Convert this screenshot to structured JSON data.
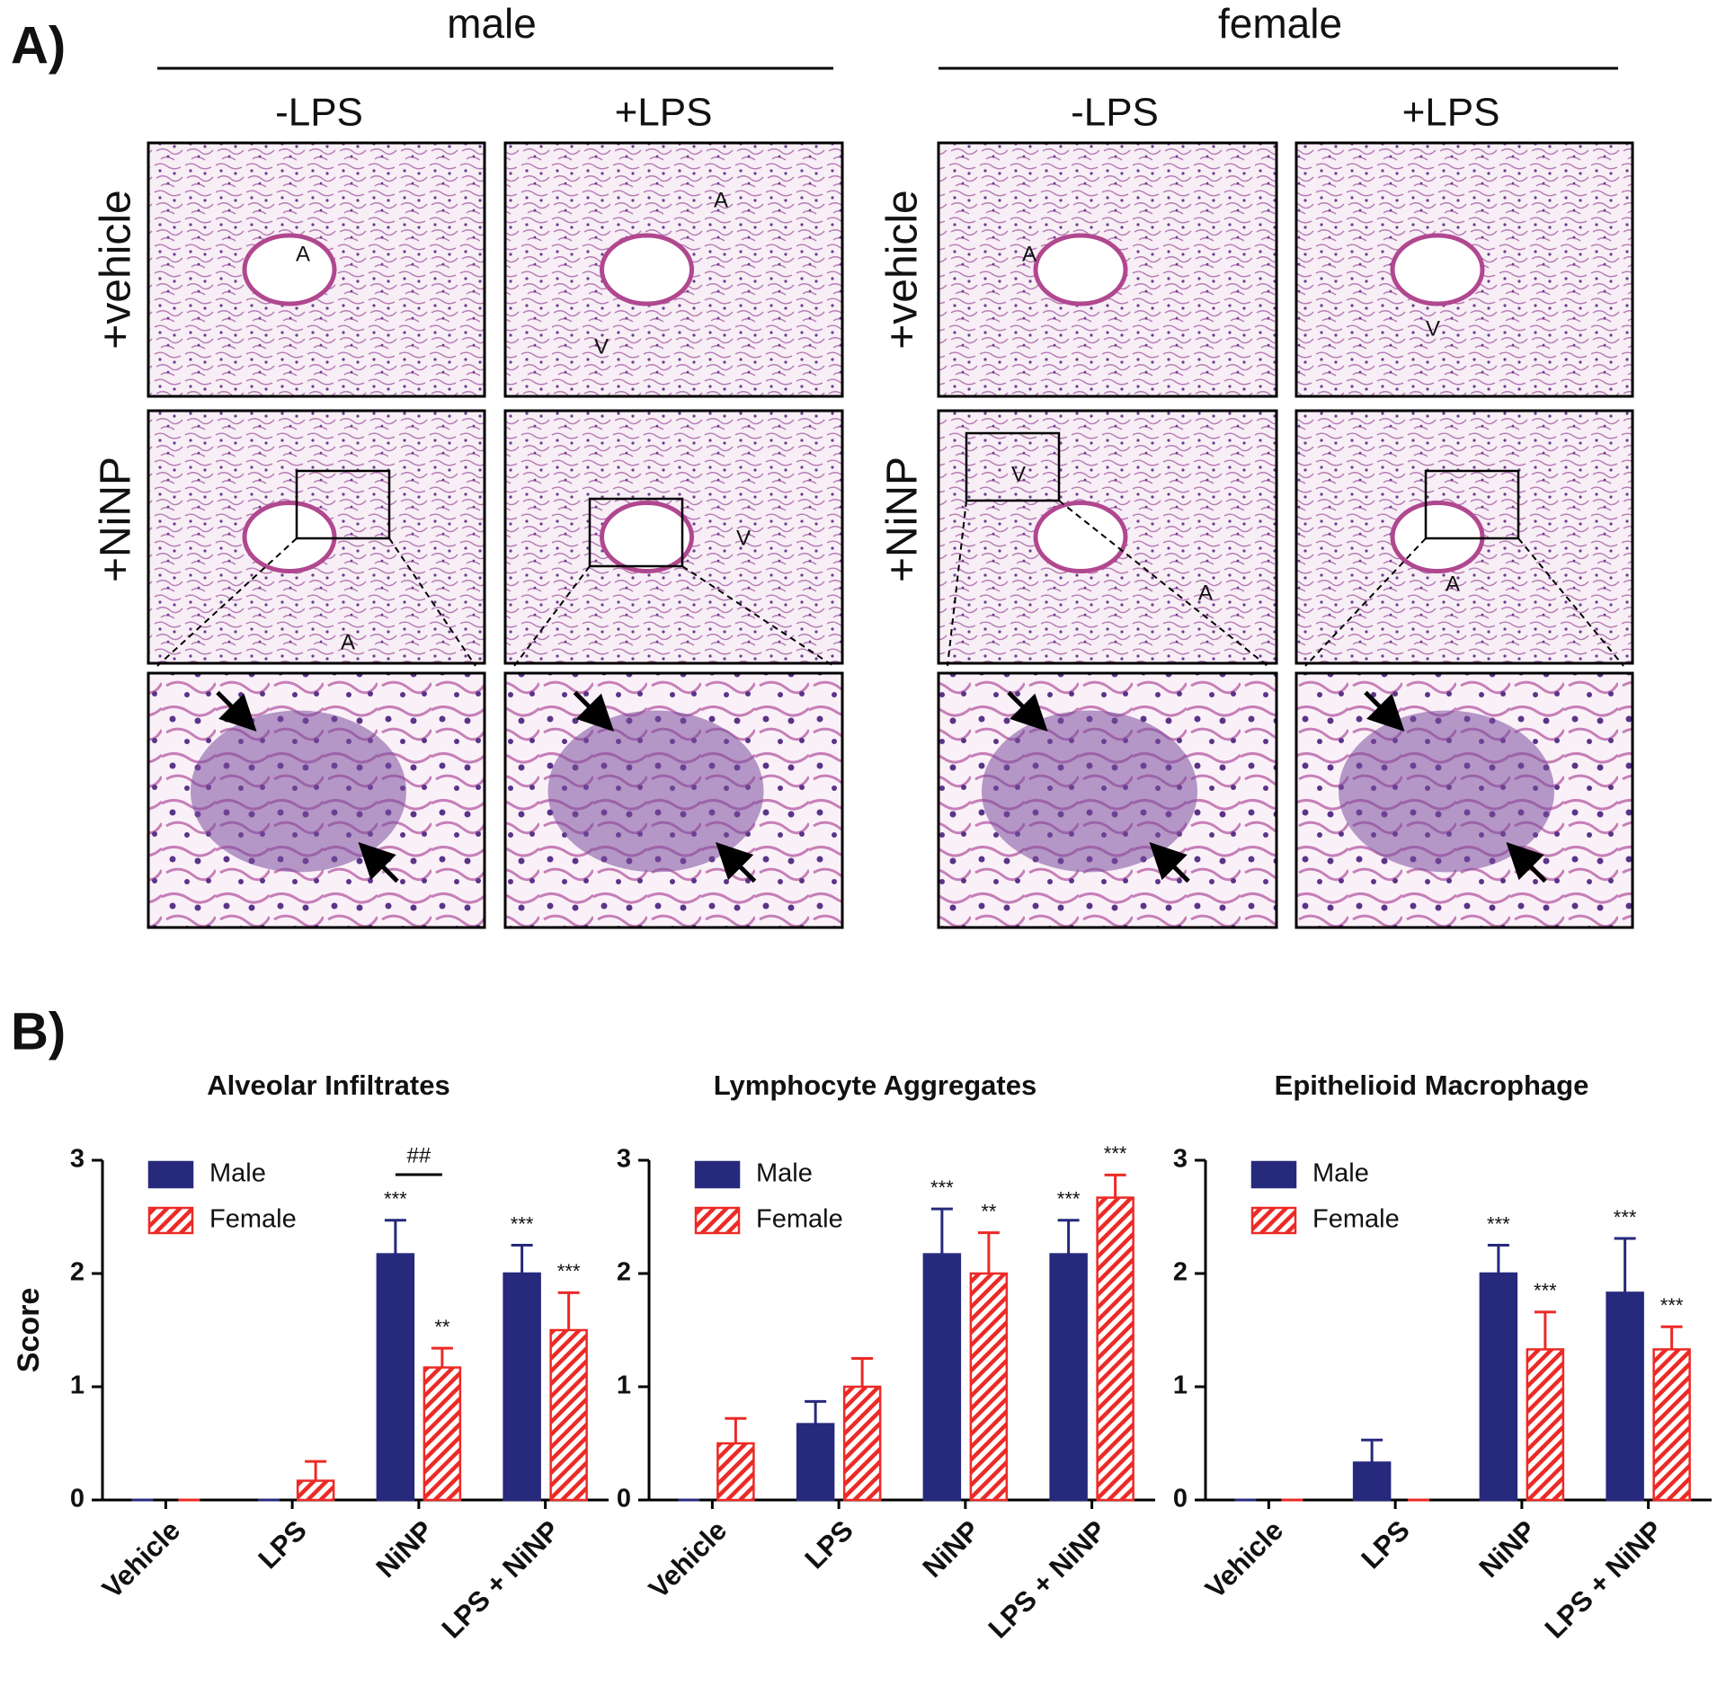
{
  "panel_a": {
    "label": "A)",
    "groups": [
      {
        "title": "male",
        "columns": [
          "-LPS",
          "+LPS"
        ],
        "rows": [
          "+vehicle",
          "+NiNP"
        ]
      },
      {
        "title": "female",
        "columns": [
          "-LPS",
          "+LPS"
        ],
        "rows": [
          "+vehicle",
          "+NiNP"
        ]
      }
    ],
    "micrograph_labels": [
      "A",
      "A",
      "V",
      "A",
      "V",
      "A",
      "V",
      "V",
      "A",
      "A"
    ]
  },
  "panel_b_label": "B)",
  "chart_data": [
    {
      "type": "bar",
      "title": "Alveolar Infiltrates",
      "ylabel": "Score",
      "categories": [
        "Vehicle",
        "LPS",
        "NiNP",
        "LPS + NiNP"
      ],
      "series": [
        {
          "name": "Male",
          "color": "#27297d",
          "values": [
            0,
            0,
            2.17,
            2.0
          ],
          "errors": [
            0,
            0,
            0.3,
            0.25
          ],
          "annotations": [
            null,
            null,
            "***",
            "***"
          ]
        },
        {
          "name": "Female",
          "color": "#ec2a26",
          "hatch": true,
          "values": [
            0,
            0.17,
            1.17,
            1.5
          ],
          "errors": [
            0,
            0.17,
            0.17,
            0.33
          ],
          "annotations": [
            null,
            null,
            "**",
            "***"
          ]
        }
      ],
      "brackets": [
        {
          "label": "##",
          "category": "NiNP"
        }
      ],
      "ylim": [
        0,
        3
      ],
      "yticks": [
        0,
        1,
        2,
        3
      ],
      "legend": "upper left"
    },
    {
      "type": "bar",
      "title": "Lymphocyte Aggregates",
      "categories": [
        "Vehicle",
        "LPS",
        "NiNP",
        "LPS + NiNP"
      ],
      "series": [
        {
          "name": "Male",
          "color": "#27297d",
          "values": [
            0,
            0.67,
            2.17,
            2.17
          ],
          "errors": [
            0,
            0.2,
            0.4,
            0.3
          ],
          "annotations": [
            null,
            null,
            "***",
            "***"
          ]
        },
        {
          "name": "Female",
          "color": "#ec2a26",
          "hatch": true,
          "values": [
            0.5,
            1.0,
            2.0,
            2.67
          ],
          "errors": [
            0.22,
            0.25,
            0.36,
            0.2
          ],
          "annotations": [
            null,
            null,
            "**",
            "***"
          ]
        }
      ],
      "ylim": [
        0,
        3
      ],
      "yticks": [
        0,
        1,
        2,
        3
      ],
      "legend": "upper left"
    },
    {
      "type": "bar",
      "title": "Epithelioid Macrophage",
      "categories": [
        "Vehicle",
        "LPS",
        "NiNP",
        "LPS + NiNP"
      ],
      "series": [
        {
          "name": "Male",
          "color": "#27297d",
          "values": [
            0,
            0.33,
            2.0,
            1.83
          ],
          "errors": [
            0,
            0.2,
            0.25,
            0.48
          ],
          "annotations": [
            null,
            null,
            "***",
            "***"
          ]
        },
        {
          "name": "Female",
          "color": "#ec2a26",
          "hatch": true,
          "values": [
            0,
            0,
            1.33,
            1.33
          ],
          "errors": [
            0,
            0,
            0.33,
            0.2
          ],
          "annotations": [
            null,
            null,
            "***",
            "***"
          ]
        }
      ],
      "ylim": [
        0,
        3
      ],
      "yticks": [
        0,
        1,
        2,
        3
      ],
      "legend": "upper left"
    }
  ]
}
